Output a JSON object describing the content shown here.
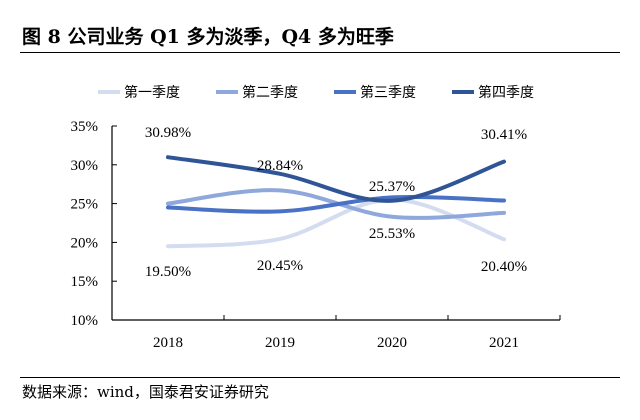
{
  "title": "图 8 公司业务 Q1 多为淡季，Q4 多为旺季",
  "source": "数据来源：wind，国泰君安证券研究",
  "chart_data": {
    "type": "line",
    "smooth": true,
    "categories": [
      "2018",
      "2019",
      "2020",
      "2021"
    ],
    "ylim": [
      0.1,
      0.35
    ],
    "yticks": [
      "10%",
      "15%",
      "20%",
      "25%",
      "30%",
      "35%"
    ],
    "ytick_values": [
      0.1,
      0.15,
      0.2,
      0.25,
      0.3,
      0.35
    ],
    "grid": false,
    "legend": "top",
    "series": [
      {
        "name": "第一季度",
        "color": "#d4dcf0",
        "values": [
          0.195,
          0.2045,
          0.2553,
          0.204
        ],
        "labels": [
          "19.50%",
          "20.45%",
          "25.53%",
          "20.40%"
        ]
      },
      {
        "name": "第二季度",
        "color": "#8fa8dc",
        "values": [
          0.25,
          0.267,
          0.233,
          0.238
        ],
        "labels": []
      },
      {
        "name": "第三季度",
        "color": "#4a72c4",
        "values": [
          0.245,
          0.24,
          0.258,
          0.254
        ],
        "labels": []
      },
      {
        "name": "第四季度",
        "color": "#2f5597",
        "values": [
          0.3098,
          0.2884,
          0.2537,
          0.3041
        ],
        "labels": [
          "30.98%",
          "28.84%",
          "25.37%",
          "30.41%"
        ]
      }
    ]
  }
}
